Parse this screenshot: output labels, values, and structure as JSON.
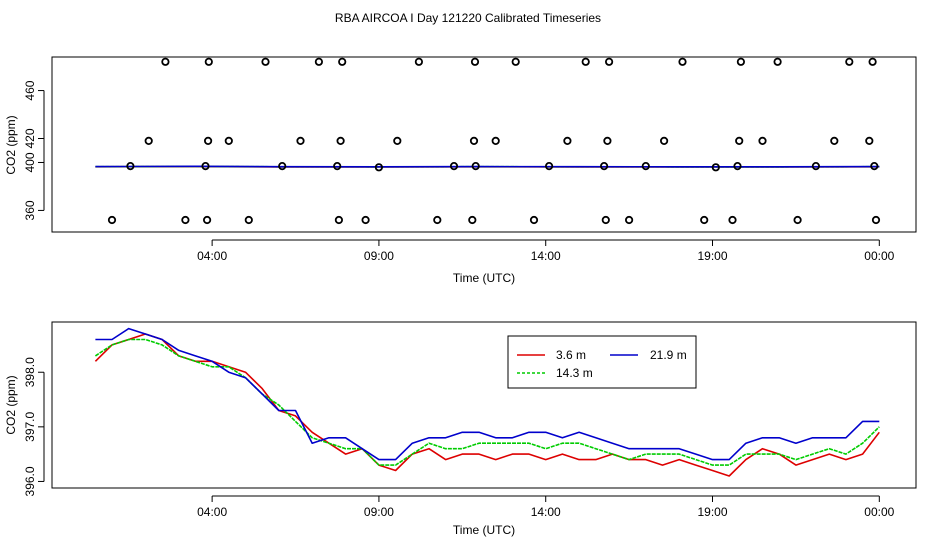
{
  "title": "RBA AIRCOA I  Day 121220  Calibrated Timeseries",
  "colors": {
    "red": "#dd0000",
    "green": "#00cc00",
    "blue": "#0000cc",
    "black": "#000000"
  },
  "chart_data": [
    {
      "type": "line",
      "id": "top",
      "title": "RBA AIRCOA I  Day 121220  Calibrated Timeseries",
      "xlabel": "Time (UTC)",
      "ylabel": "CO2 (ppm)",
      "xlim": [
        -0.8,
        25.1
      ],
      "ylim": [
        342,
        488
      ],
      "x_ticks": [
        {
          "v": 4,
          "label": "04:00"
        },
        {
          "v": 9,
          "label": "09:00"
        },
        {
          "v": 14,
          "label": "14:00"
        },
        {
          "v": 19,
          "label": "19:00"
        },
        {
          "v": 24,
          "label": "00:00"
        }
      ],
      "y_ticks": [
        {
          "v": 360,
          "label": "360"
        },
        {
          "v": 400,
          "label": "400"
        },
        {
          "v": 420,
          "label": "420"
        },
        {
          "v": 460,
          "label": "460"
        }
      ],
      "series": [
        {
          "name": "3.6 m",
          "color": "red",
          "x": [
            0.5,
            3.5,
            6.0,
            9.0,
            12.0,
            15.0,
            18.0,
            21.0,
            24.0
          ],
          "y": [
            396.4,
            396.6,
            396.3,
            396.2,
            396.4,
            396.3,
            396.2,
            396.3,
            396.4
          ]
        },
        {
          "name": "14.3 m",
          "color": "green",
          "x": [
            0.5,
            3.5,
            6.0,
            9.0,
            12.0,
            15.0,
            18.0,
            21.0,
            24.0
          ],
          "y": [
            396.5,
            396.7,
            396.4,
            396.3,
            396.5,
            396.4,
            396.3,
            396.3,
            396.5
          ]
        },
        {
          "name": "21.9 m",
          "color": "blue",
          "x": [
            0.5,
            3.5,
            6.0,
            9.0,
            12.0,
            15.0,
            18.0,
            21.0,
            24.0
          ],
          "y": [
            396.6,
            396.8,
            396.5,
            396.4,
            396.6,
            396.5,
            396.4,
            396.4,
            396.6
          ]
        }
      ],
      "points": {
        "name": "calibration points",
        "color": "black",
        "x": [
          1.0,
          1.55,
          2.1,
          2.6,
          3.2,
          3.8,
          3.85,
          3.88,
          3.9,
          4.5,
          5.1,
          5.6,
          6.1,
          6.65,
          7.2,
          7.75,
          7.8,
          7.85,
          7.9,
          8.6,
          9.0,
          9.55,
          10.2,
          10.75,
          11.25,
          11.8,
          11.85,
          11.88,
          11.9,
          12.5,
          13.1,
          13.65,
          14.1,
          14.65,
          15.2,
          15.75,
          15.8,
          15.85,
          15.9,
          16.5,
          17.0,
          17.55,
          18.1,
          18.75,
          19.1,
          19.6,
          19.75,
          19.8,
          19.85,
          20.5,
          20.95,
          21.55,
          22.1,
          22.65,
          23.1,
          23.7,
          23.8,
          23.85,
          23.9
        ],
        "y": [
          352,
          397,
          418,
          484,
          352,
          397,
          352,
          418,
          484,
          418,
          352,
          484,
          397,
          418,
          484,
          397,
          352,
          418,
          484,
          352,
          396,
          418,
          484,
          352,
          397,
          352,
          418,
          484,
          397,
          418,
          484,
          352,
          397,
          418,
          484,
          397,
          352,
          418,
          484,
          352,
          397,
          418,
          484,
          352,
          396,
          352,
          397,
          418,
          484,
          418,
          484,
          352,
          397,
          418,
          484,
          418,
          484,
          397,
          352
        ]
      }
    },
    {
      "type": "line",
      "id": "bottom",
      "xlabel": "Time (UTC)",
      "ylabel": "CO2 (ppm)",
      "xlim": [
        -0.8,
        25.1
      ],
      "ylim": [
        395.88,
        398.92
      ],
      "x_ticks": [
        {
          "v": 4,
          "label": "04:00"
        },
        {
          "v": 9,
          "label": "09:00"
        },
        {
          "v": 14,
          "label": "14:00"
        },
        {
          "v": 19,
          "label": "19:00"
        },
        {
          "v": 24,
          "label": "00:00"
        }
      ],
      "y_ticks": [
        {
          "v": 396.0,
          "label": "396.0"
        },
        {
          "v": 397.0,
          "label": "397.0"
        },
        {
          "v": 398.0,
          "label": "398.0"
        }
      ],
      "legend": {
        "position": "top-center",
        "entries": [
          "3.6 m",
          "21.9 m",
          "14.3 m"
        ]
      },
      "x": [
        0.5,
        1.0,
        1.5,
        2.0,
        2.5,
        3.0,
        3.5,
        4.0,
        4.5,
        5.0,
        5.5,
        6.0,
        6.5,
        7.0,
        7.5,
        8.0,
        8.5,
        9.0,
        9.5,
        10.0,
        10.5,
        11.0,
        11.5,
        12.0,
        12.5,
        13.0,
        13.5,
        14.0,
        14.5,
        15.0,
        15.5,
        16.0,
        16.5,
        17.0,
        17.5,
        18.0,
        18.5,
        19.0,
        19.5,
        20.0,
        20.5,
        21.0,
        21.5,
        22.0,
        22.5,
        23.0,
        23.5,
        24.0
      ],
      "series": [
        {
          "name": "3.6 m",
          "color": "red",
          "values": [
            398.2,
            398.5,
            398.6,
            398.7,
            398.6,
            398.3,
            398.2,
            398.2,
            398.1,
            398.0,
            397.7,
            397.3,
            397.2,
            396.9,
            396.7,
            396.5,
            396.6,
            396.3,
            396.2,
            396.5,
            396.6,
            396.4,
            396.5,
            396.5,
            396.4,
            396.5,
            396.5,
            396.4,
            396.5,
            396.4,
            396.4,
            396.5,
            396.4,
            396.4,
            396.3,
            396.4,
            396.3,
            396.2,
            396.1,
            396.4,
            396.6,
            396.5,
            396.3,
            396.4,
            396.5,
            396.4,
            396.5,
            396.9
          ]
        },
        {
          "name": "14.3 m",
          "color": "green",
          "values": [
            398.3,
            398.5,
            398.6,
            398.6,
            398.5,
            398.3,
            398.2,
            398.1,
            398.1,
            397.9,
            397.6,
            397.4,
            397.1,
            396.8,
            396.7,
            396.6,
            396.6,
            396.3,
            396.3,
            396.5,
            396.7,
            396.6,
            396.6,
            396.7,
            396.7,
            396.7,
            396.7,
            396.6,
            396.7,
            396.7,
            396.6,
            396.5,
            396.4,
            396.5,
            396.5,
            396.5,
            396.4,
            396.3,
            396.3,
            396.5,
            396.5,
            396.5,
            396.4,
            396.5,
            396.6,
            396.5,
            396.7,
            397.0
          ]
        },
        {
          "name": "21.9 m",
          "color": "blue",
          "values": [
            398.6,
            398.6,
            398.8,
            398.7,
            398.6,
            398.4,
            398.3,
            398.2,
            398.0,
            397.9,
            397.6,
            397.3,
            397.3,
            396.7,
            396.8,
            396.8,
            396.6,
            396.4,
            396.4,
            396.7,
            396.8,
            396.8,
            396.9,
            396.9,
            396.8,
            396.8,
            396.9,
            396.9,
            396.8,
            396.9,
            396.8,
            396.7,
            396.6,
            396.6,
            396.6,
            396.6,
            396.5,
            396.4,
            396.4,
            396.7,
            396.8,
            396.8,
            396.7,
            396.8,
            396.8,
            396.8,
            397.1,
            397.1
          ]
        }
      ]
    }
  ]
}
